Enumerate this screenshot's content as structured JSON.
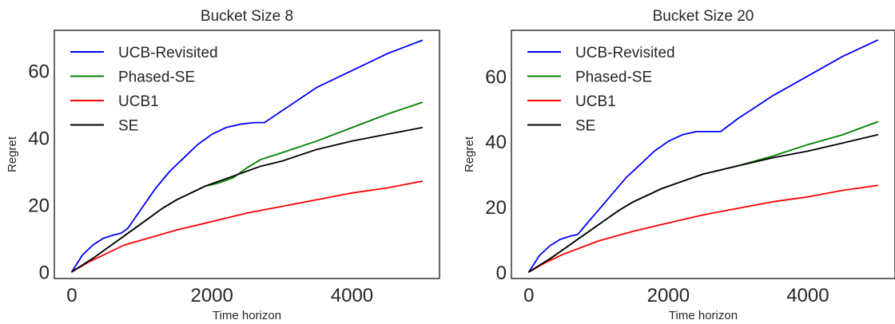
{
  "chart_data": [
    {
      "type": "line",
      "title": "Bucket Size 8",
      "xlabel": "Time horizon",
      "ylabel": "Regret",
      "xlim": [
        -250,
        5250
      ],
      "ylim": [
        -2,
        72
      ],
      "xticks": [
        0,
        2000,
        4000
      ],
      "yticks": [
        0,
        20,
        40,
        60
      ],
      "grid": false,
      "legend": "top-left",
      "series": [
        {
          "name": "UCB-Revisited",
          "color": "#0000ff",
          "x": [
            0,
            150,
            300,
            450,
            600,
            700,
            800,
            1000,
            1200,
            1400,
            1600,
            1800,
            2000,
            2200,
            2400,
            2600,
            2750,
            3000,
            3500,
            4000,
            4500,
            5000
          ],
          "y": [
            0,
            5,
            8,
            10,
            11,
            11.5,
            13,
            19,
            25,
            30,
            34,
            38,
            41,
            43,
            44,
            44.5,
            44.5,
            48,
            55,
            60,
            65,
            69
          ]
        },
        {
          "name": "Phased-SE",
          "color": "#008000",
          "x": [
            0,
            300,
            500,
            700,
            900,
            1100,
            1300,
            1500,
            1700,
            1900,
            2100,
            2300,
            2500,
            2700,
            3000,
            3500,
            4000,
            4500,
            5000
          ],
          "y": [
            0,
            4,
            7,
            10,
            13,
            16,
            19,
            21.5,
            23.5,
            25.5,
            26.5,
            28,
            31,
            33.5,
            35.5,
            39,
            43,
            47,
            50.5
          ]
        },
        {
          "name": "UCB1",
          "color": "#ff0000",
          "x": [
            0,
            250,
            500,
            750,
            1000,
            1250,
            1500,
            2000,
            2500,
            3000,
            3500,
            4000,
            4500,
            5000
          ],
          "y": [
            0,
            3,
            5.5,
            8,
            9.5,
            11,
            12.5,
            15,
            17.5,
            19.5,
            21.5,
            23.5,
            25,
            27
          ]
        },
        {
          "name": "SE",
          "color": "#000000",
          "x": [
            0,
            300,
            500,
            700,
            900,
            1100,
            1300,
            1500,
            1700,
            1900,
            2100,
            2300,
            2500,
            2700,
            3000,
            3500,
            4000,
            4500,
            5000
          ],
          "y": [
            0,
            4,
            7,
            10,
            13,
            16,
            19,
            21.5,
            23.5,
            25.5,
            27,
            28.5,
            30,
            31.5,
            33,
            36.5,
            39,
            41,
            43
          ]
        }
      ]
    },
    {
      "type": "line",
      "title": "Bucket Size 20",
      "xlabel": "Time horizon",
      "ylabel": "Regret",
      "xlim": [
        -250,
        5250
      ],
      "ylim": [
        -2,
        74
      ],
      "xticks": [
        0,
        2000,
        4000
      ],
      "yticks": [
        0,
        20,
        40,
        60
      ],
      "grid": false,
      "legend": "top-left",
      "series": [
        {
          "name": "UCB-Revisited",
          "color": "#0000ff",
          "x": [
            0,
            150,
            300,
            450,
            600,
            700,
            800,
            1000,
            1200,
            1400,
            1600,
            1800,
            2000,
            2200,
            2400,
            2600,
            2750,
            3000,
            3500,
            4000,
            4500,
            5000
          ],
          "y": [
            0,
            5,
            8,
            10,
            11,
            11.5,
            14,
            19,
            24,
            29,
            33,
            37,
            40,
            42,
            43,
            43,
            43,
            47,
            54,
            60,
            66,
            71
          ]
        },
        {
          "name": "Phased-SE",
          "color": "#008000",
          "x": [
            0,
            300,
            500,
            700,
            900,
            1100,
            1300,
            1500,
            1700,
            1900,
            2100,
            2300,
            2500,
            2700,
            3000,
            3500,
            4000,
            4500,
            5000
          ],
          "y": [
            0,
            4,
            7,
            10,
            13,
            16,
            19,
            21.5,
            23.5,
            25.5,
            27,
            28.5,
            30,
            31,
            32.5,
            35.5,
            39,
            42,
            46
          ]
        },
        {
          "name": "UCB1",
          "color": "#ff0000",
          "x": [
            0,
            250,
            500,
            750,
            1000,
            1250,
            1500,
            2000,
            2500,
            3000,
            3500,
            4000,
            4500,
            5000
          ],
          "y": [
            0,
            3,
            5.5,
            7.5,
            9.5,
            11,
            12.5,
            15,
            17.5,
            19.5,
            21.5,
            23,
            25,
            26.5
          ]
        },
        {
          "name": "SE",
          "color": "#000000",
          "x": [
            0,
            300,
            500,
            700,
            900,
            1100,
            1300,
            1500,
            1700,
            1900,
            2100,
            2300,
            2500,
            2700,
            3000,
            3500,
            4000,
            4500,
            5000
          ],
          "y": [
            0,
            4,
            7,
            10,
            13,
            16,
            19,
            21.5,
            23.5,
            25.5,
            27,
            28.5,
            30,
            31,
            32.5,
            35,
            37,
            39.5,
            42
          ]
        }
      ]
    }
  ]
}
